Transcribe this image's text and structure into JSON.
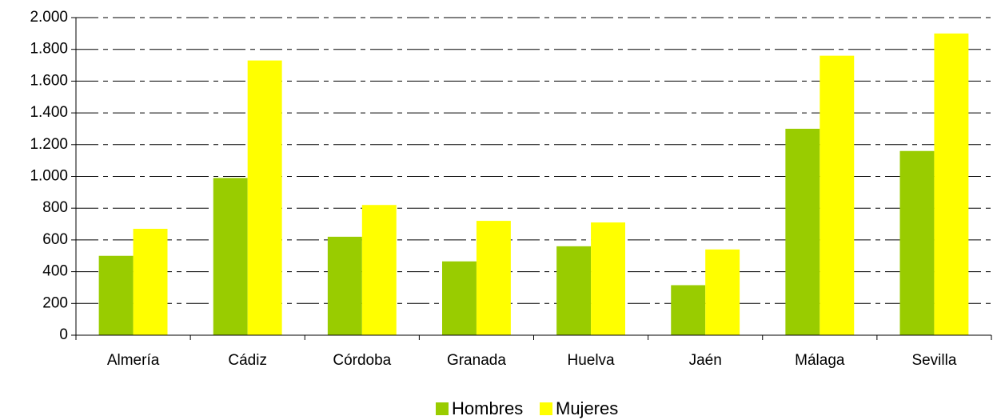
{
  "chart_data": {
    "type": "bar",
    "categories": [
      "Almería",
      "Cádiz",
      "Córdoba",
      "Granada",
      "Huelva",
      "Jaén",
      "Málaga",
      "Sevilla"
    ],
    "series": [
      {
        "name": "Hombres",
        "color": "#99cc00",
        "values": [
          500,
          990,
          620,
          465,
          560,
          315,
          1300,
          1160
        ]
      },
      {
        "name": "Mujeres",
        "color": "#ffff00",
        "values": [
          670,
          1730,
          820,
          720,
          710,
          540,
          1760,
          1900
        ]
      }
    ],
    "ylim": [
      0,
      2000
    ],
    "yticks": [
      0,
      200,
      400,
      600,
      800,
      {
        "value": 1000,
        "label": "1.000"
      },
      {
        "value": 1200,
        "label": "1.200"
      },
      {
        "value": 1400,
        "label": "1.400"
      },
      {
        "value": 1600,
        "label": "1.600"
      },
      {
        "value": 1800,
        "label": "1.800"
      },
      {
        "value": 2000,
        "label": "2.000"
      }
    ],
    "grid": true,
    "legend": "bottom"
  }
}
